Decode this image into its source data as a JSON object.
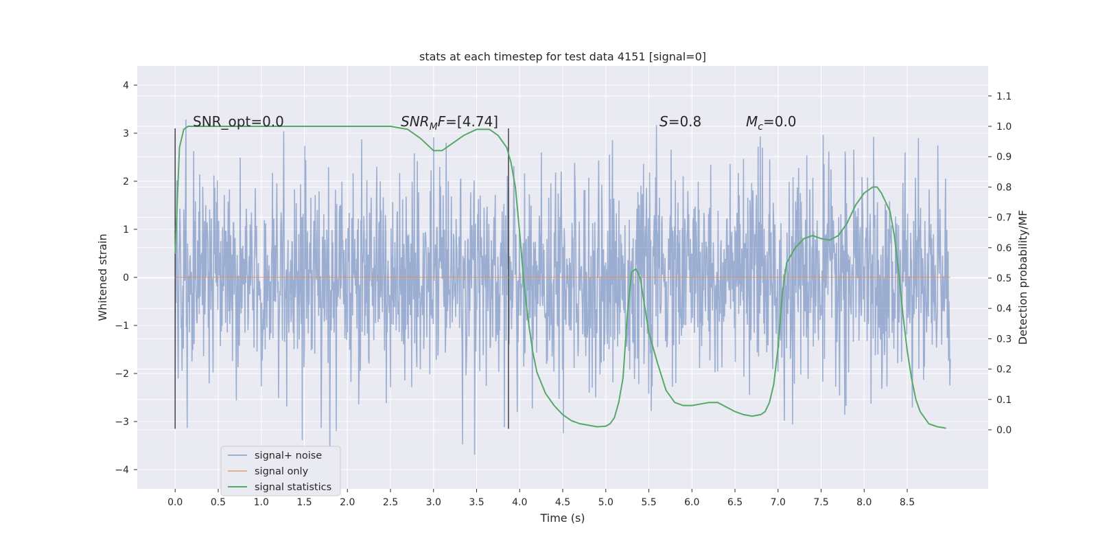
{
  "chart_data": {
    "type": "line",
    "title": "stats at each timestep for test data 4151 [signal=0]",
    "xlabel": "Time (s)",
    "ylabel": "Whitened strain",
    "ylabel_right": "Detection probability/MF",
    "xlim": [
      -0.44,
      9.44
    ],
    "ylim": [
      -4.4,
      4.4
    ],
    "ylim_right": [
      -0.0,
      1.1
    ],
    "x_ticks": [
      "0.0",
      "0.5",
      "1.0",
      "1.5",
      "2.0",
      "2.5",
      "3.0",
      "3.5",
      "4.0",
      "4.5",
      "5.0",
      "5.5",
      "6.0",
      "6.5",
      "7.0",
      "7.5",
      "8.0",
      "8.5"
    ],
    "y_ticks": [
      "−4",
      "−3",
      "−2",
      "−1",
      "0",
      "1",
      "2",
      "3",
      "4"
    ],
    "y_ticks_right": [
      "0.0",
      "0.1",
      "0.2",
      "0.3",
      "0.4",
      "0.5",
      "0.6",
      "0.7",
      "0.8",
      "0.9",
      "1.0",
      "1.1"
    ],
    "grid": true,
    "legend_position": "lower-left",
    "series": [
      {
        "name": "signal+ noise",
        "color": "#4c72b0",
        "axis": "left",
        "description_range": [
          -3.9,
          4.0
        ],
        "x_range": [
          0.0,
          9.0
        ]
      },
      {
        "name": "signal only",
        "color": "#dd8452",
        "axis": "left",
        "x": [
          0.0,
          9.0
        ],
        "y": [
          0.0,
          0.0
        ]
      },
      {
        "name": "signal statistics",
        "color": "#55a868",
        "axis": "right",
        "x": [
          0.0,
          0.05,
          0.1,
          0.15,
          0.25,
          0.4,
          0.6,
          1.0,
          1.5,
          2.0,
          2.5,
          2.7,
          2.85,
          3.0,
          3.1,
          3.2,
          3.35,
          3.5,
          3.65,
          3.75,
          3.85,
          3.9,
          3.95,
          4.0,
          4.05,
          4.1,
          4.15,
          4.2,
          4.3,
          4.4,
          4.5,
          4.6,
          4.7,
          4.8,
          4.9,
          5.0,
          5.05,
          5.1,
          5.15,
          5.2,
          5.25,
          5.3,
          5.35,
          5.4,
          5.5,
          5.6,
          5.7,
          5.8,
          5.9,
          6.0,
          6.1,
          6.2,
          6.3,
          6.4,
          6.5,
          6.6,
          6.7,
          6.8,
          6.85,
          6.9,
          6.95,
          7.0,
          7.05,
          7.1,
          7.2,
          7.3,
          7.4,
          7.5,
          7.6,
          7.7,
          7.8,
          7.9,
          8.0,
          8.1,
          8.15,
          8.2,
          8.3,
          8.35,
          8.4,
          8.45,
          8.5,
          8.55,
          8.6,
          8.65,
          8.7,
          8.75,
          8.8,
          8.85,
          8.9,
          8.95
        ],
        "y": [
          0.58,
          0.93,
          0.99,
          1.0,
          1.0,
          1.0,
          1.0,
          1.0,
          1.0,
          1.0,
          1.0,
          0.99,
          0.96,
          0.92,
          0.92,
          0.94,
          0.97,
          0.99,
          0.99,
          0.97,
          0.93,
          0.88,
          0.8,
          0.65,
          0.48,
          0.36,
          0.26,
          0.19,
          0.12,
          0.08,
          0.05,
          0.03,
          0.02,
          0.015,
          0.01,
          0.012,
          0.02,
          0.04,
          0.09,
          0.17,
          0.38,
          0.52,
          0.53,
          0.5,
          0.32,
          0.22,
          0.13,
          0.09,
          0.08,
          0.08,
          0.085,
          0.09,
          0.09,
          0.075,
          0.06,
          0.05,
          0.045,
          0.05,
          0.06,
          0.09,
          0.15,
          0.27,
          0.45,
          0.55,
          0.6,
          0.63,
          0.64,
          0.63,
          0.625,
          0.64,
          0.68,
          0.74,
          0.78,
          0.8,
          0.8,
          0.78,
          0.72,
          0.64,
          0.52,
          0.38,
          0.26,
          0.17,
          0.1,
          0.06,
          0.04,
          0.02,
          0.015,
          0.01,
          0.008,
          0.005
        ]
      }
    ],
    "vertical_markers": [
      0.0,
      3.87
    ],
    "annotations": [
      {
        "id": "snr_opt",
        "text": "SNR_opt=0.0",
        "x": 0.2
      },
      {
        "id": "snr_mf",
        "text_main": "SNR",
        "text_sub": "M",
        "text_tail": "F=[4.74]",
        "x": 2.6
      },
      {
        "id": "s",
        "text_main": "S",
        "text_tail": "=0.8",
        "x": 5.6
      },
      {
        "id": "mc",
        "text_main": "M",
        "text_sub": "c",
        "text_tail": "=0.0",
        "x": 6.6
      }
    ]
  }
}
